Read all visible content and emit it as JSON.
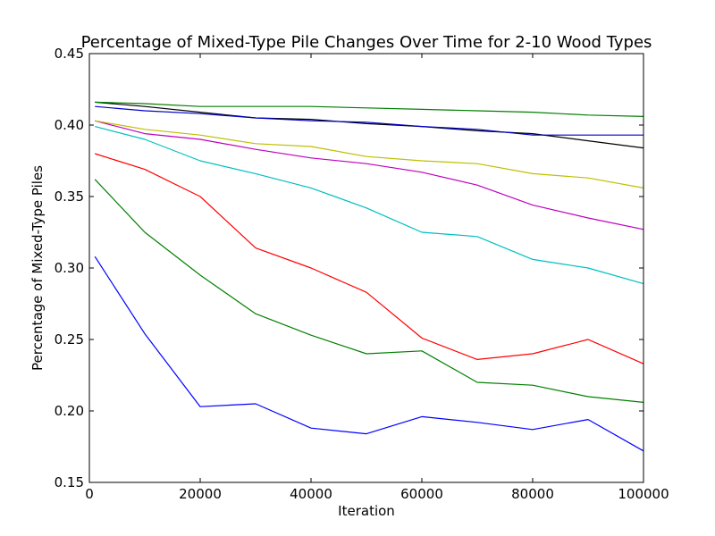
{
  "chart_data": {
    "type": "line",
    "title": "Percentage of Mixed-Type Pile Changes Over Time for 2-10 Wood Types",
    "xlabel": "Iteration",
    "ylabel": "Percentage of Mixed-Type Piles",
    "xlim": [
      0,
      100000
    ],
    "ylim": [
      0.15,
      0.45
    ],
    "xticks": [
      "0",
      "20000",
      "40000",
      "60000",
      "80000",
      "100000"
    ],
    "yticks": [
      "0.15",
      "0.20",
      "0.25",
      "0.30",
      "0.35",
      "0.40",
      "0.45"
    ],
    "grid": false,
    "legend": "none",
    "x": [
      1000,
      10000,
      20000,
      30000,
      40000,
      50000,
      60000,
      70000,
      80000,
      90000,
      100000
    ],
    "series": [
      {
        "color": "#0000ff",
        "values": [
          0.308,
          0.254,
          0.203,
          0.205,
          0.188,
          0.184,
          0.196,
          0.192,
          0.187,
          0.194,
          0.172
        ]
      },
      {
        "color": "#008000",
        "values": [
          0.362,
          0.325,
          0.295,
          0.268,
          0.253,
          0.24,
          0.242,
          0.22,
          0.218,
          0.21,
          0.206
        ]
      },
      {
        "color": "#ff0000",
        "values": [
          0.38,
          0.369,
          0.35,
          0.314,
          0.3,
          0.283,
          0.251,
          0.236,
          0.24,
          0.25,
          0.233
        ]
      },
      {
        "color": "#00bfbf",
        "values": [
          0.399,
          0.39,
          0.375,
          0.366,
          0.356,
          0.342,
          0.325,
          0.322,
          0.306,
          0.3,
          0.289
        ]
      },
      {
        "color": "#bf00bf",
        "values": [
          0.403,
          0.394,
          0.39,
          0.383,
          0.377,
          0.373,
          0.367,
          0.358,
          0.344,
          0.335,
          0.327
        ]
      },
      {
        "color": "#bfbf00",
        "values": [
          0.403,
          0.397,
          0.393,
          0.387,
          0.385,
          0.378,
          0.375,
          0.373,
          0.366,
          0.363,
          0.356
        ]
      },
      {
        "color": "#000000",
        "values": [
          0.416,
          0.413,
          0.409,
          0.405,
          0.404,
          0.401,
          0.399,
          0.396,
          0.394,
          0.389,
          0.384
        ]
      },
      {
        "color": "#0000cd",
        "values": [
          0.413,
          0.41,
          0.408,
          0.405,
          0.403,
          0.402,
          0.399,
          0.397,
          0.393,
          0.393,
          0.393
        ]
      },
      {
        "color": "#007f00",
        "values": [
          0.416,
          0.415,
          0.413,
          0.413,
          0.413,
          0.412,
          0.411,
          0.41,
          0.409,
          0.407,
          0.406
        ]
      }
    ]
  }
}
